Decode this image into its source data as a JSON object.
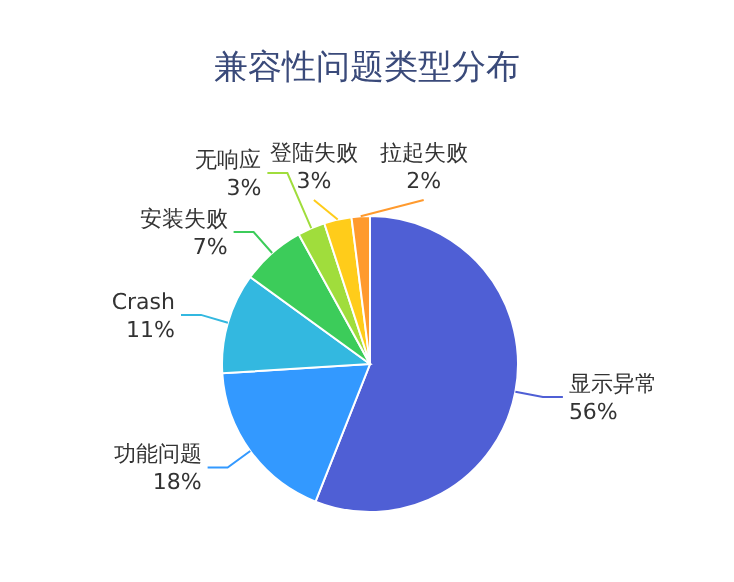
{
  "chart_data": {
    "type": "pie",
    "title": "兼容性问题类型分布",
    "categories": [
      "显示异常",
      "功能问题",
      "Crash",
      "安装失败",
      "无响应",
      "登陆失败",
      "拉起失败"
    ],
    "values": [
      56,
      18,
      11,
      7,
      3,
      3,
      2
    ],
    "value_labels": [
      "56%",
      "18%",
      "11%",
      "7%",
      "3%",
      "3%",
      "2%"
    ],
    "colors": [
      "#4f5fd5",
      "#3399ff",
      "#33b8e0",
      "#3ccc5a",
      "#a0dd3c",
      "#ffcc1a",
      "#ff9a2e"
    ],
    "legend": false
  }
}
